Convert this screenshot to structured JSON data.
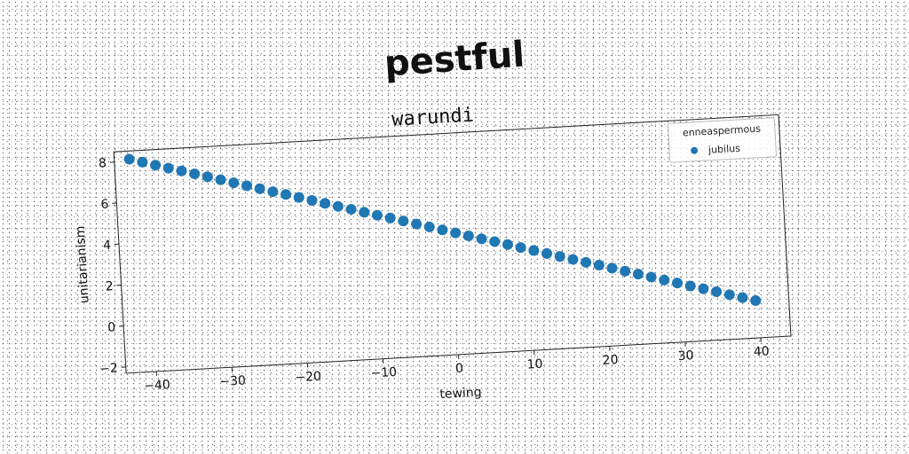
{
  "page": {
    "title": "pestful"
  },
  "chart_data": {
    "type": "scatter",
    "title": "warundi",
    "xlabel": "tewing",
    "ylabel": "unitarianism",
    "xlim": [
      -44,
      44
    ],
    "ylim": [
      -2.3,
      8.5
    ],
    "xticks": [
      -40,
      -30,
      -20,
      -10,
      0,
      10,
      20,
      30,
      40
    ],
    "yticks": [
      -2,
      0,
      2,
      4,
      6,
      8
    ],
    "grid": false,
    "legend": {
      "title": "enneaspermous",
      "placement": "top-right"
    },
    "series": [
      {
        "name": "jubilus",
        "color": "#1f77b4",
        "marker": "circle",
        "x": [
          -42,
          -40.3,
          -38.6,
          -36.9,
          -35.2,
          -33.5,
          -31.8,
          -30.1,
          -28.4,
          -26.7,
          -25.0,
          -23.3,
          -21.6,
          -19.9,
          -18.2,
          -16.5,
          -14.8,
          -13.1,
          -11.4,
          -9.7,
          -8.0,
          -6.3,
          -4.6,
          -2.9,
          -1.2,
          0.5,
          2.2,
          3.9,
          5.6,
          7.3,
          9.0,
          10.7,
          12.4,
          14.1,
          15.8,
          17.5,
          19.2,
          20.9,
          22.6,
          24.3,
          26.0,
          27.7,
          29.4,
          31.1,
          32.8,
          34.5,
          36.2,
          37.9,
          39.6
        ],
        "y": [
          8.1,
          7.92,
          7.74,
          7.56,
          7.39,
          7.21,
          7.03,
          6.85,
          6.67,
          6.49,
          6.31,
          6.13,
          5.96,
          5.78,
          5.6,
          5.42,
          5.24,
          5.06,
          4.88,
          4.7,
          4.53,
          4.35,
          4.17,
          3.99,
          3.81,
          3.63,
          3.45,
          3.27,
          3.1,
          2.92,
          2.74,
          2.56,
          2.38,
          2.2,
          2.02,
          1.84,
          1.67,
          1.49,
          1.31,
          1.13,
          0.95,
          0.77,
          0.59,
          0.41,
          0.24,
          0.06,
          -0.12,
          -0.3,
          -0.48
        ]
      }
    ]
  }
}
